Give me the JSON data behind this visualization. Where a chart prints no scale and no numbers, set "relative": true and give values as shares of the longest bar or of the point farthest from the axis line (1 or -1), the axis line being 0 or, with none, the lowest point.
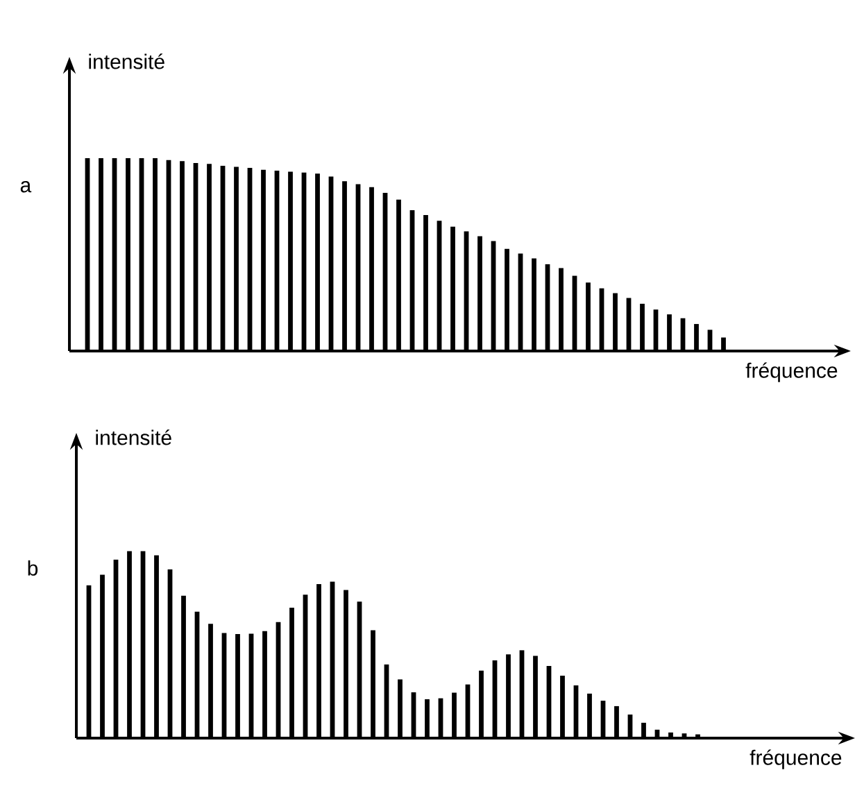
{
  "chart_data": [
    {
      "type": "bar",
      "title": "a",
      "xlabel": "fréquence",
      "ylabel": "intensité",
      "relative": true,
      "color": "#000000",
      "categories": [
        null,
        null,
        null,
        null,
        null,
        null,
        null,
        null,
        null,
        null,
        null,
        null,
        null,
        null,
        null,
        null,
        null,
        null,
        null,
        null,
        null,
        null,
        null,
        null,
        null,
        null,
        null,
        null,
        null,
        null,
        null,
        null,
        null,
        null,
        null,
        null,
        null,
        null,
        null,
        null,
        null,
        null,
        null,
        null,
        null,
        null,
        null,
        null
      ],
      "values": [
        1,
        1,
        1,
        1,
        1,
        1,
        0.99,
        0.985,
        0.975,
        0.97,
        0.96,
        0.955,
        0.95,
        0.94,
        0.935,
        0.93,
        0.925,
        0.92,
        0.905,
        0.88,
        0.865,
        0.85,
        0.82,
        0.785,
        0.73,
        0.705,
        0.675,
        0.645,
        0.62,
        0.595,
        0.57,
        0.53,
        0.505,
        0.48,
        0.45,
        0.43,
        0.39,
        0.355,
        0.325,
        0.3,
        0.275,
        0.245,
        0.215,
        0.19,
        0.17,
        0.14,
        0.11,
        0.07
      ]
    },
    {
      "type": "bar",
      "title": "b",
      "xlabel": "fréquence",
      "ylabel": "intensité",
      "relative": true,
      "color": "#000000",
      "categories": [
        null,
        null,
        null,
        null,
        null,
        null,
        null,
        null,
        null,
        null,
        null,
        null,
        null,
        null,
        null,
        null,
        null,
        null,
        null,
        null,
        null,
        null,
        null,
        null,
        null,
        null,
        null,
        null,
        null,
        null,
        null,
        null,
        null,
        null,
        null,
        null,
        null,
        null,
        null,
        null,
        null,
        null,
        null,
        null,
        null,
        null
      ],
      "values": [
        0.817,
        0.874,
        0.955,
        1,
        1,
        0.978,
        0.903,
        0.762,
        0.676,
        0.611,
        0.562,
        0.557,
        0.559,
        0.572,
        0.621,
        0.698,
        0.767,
        0.824,
        0.837,
        0.792,
        0.73,
        0.577,
        0.394,
        0.314,
        0.245,
        0.208,
        0.213,
        0.243,
        0.287,
        0.361,
        0.416,
        0.448,
        0.47,
        0.44,
        0.386,
        0.334,
        0.282,
        0.238,
        0.2,
        0.171,
        0.126,
        0.082,
        0.045,
        0.03,
        0.025,
        0.02
      ]
    }
  ]
}
